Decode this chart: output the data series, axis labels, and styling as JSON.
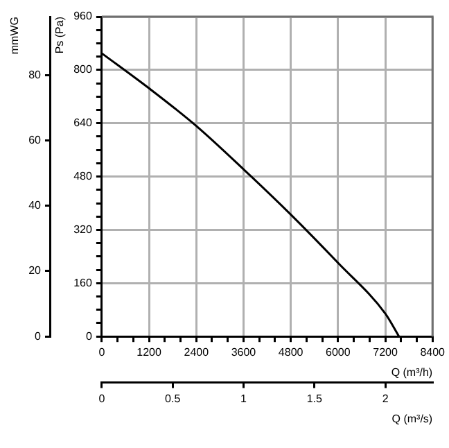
{
  "chart_data": {
    "type": "line",
    "xlabel": "Q (m³/h)",
    "ylabel": "Ps (Pa)",
    "y2label": "mmWG",
    "x2label": "Q (m³/s)",
    "x": [
      0,
      1200,
      2400,
      3600,
      4800,
      6000,
      7200,
      7550
    ],
    "series": [
      {
        "color": "#000000",
        "values": [
          850,
          745,
          632,
          502,
          366,
          221,
          69,
          0
        ]
      }
    ],
    "xlim": [
      0,
      8400
    ],
    "xticks": [
      0,
      {
        "value": 400,
        "label": null
      },
      {
        "value": 800,
        "label": null
      },
      1200,
      {
        "value": 1600,
        "label": null
      },
      {
        "value": 2000,
        "label": null
      },
      2400,
      {
        "value": 2800,
        "label": null
      },
      {
        "value": 3200,
        "label": null
      },
      3600,
      {
        "value": 4000,
        "label": null
      },
      {
        "value": 4400,
        "label": null
      },
      4800,
      {
        "value": 5200,
        "label": null
      },
      {
        "value": 5600,
        "label": null
      },
      6000,
      {
        "value": 6400,
        "label": null
      },
      {
        "value": 6800,
        "label": null
      },
      7200,
      {
        "value": 7600,
        "label": null
      },
      {
        "value": 8000,
        "label": null
      },
      8400
    ],
    "ylim": [
      0,
      960
    ],
    "yticks": [
      0,
      {
        "value": 40,
        "label": null
      },
      {
        "value": 80,
        "label": null
      },
      {
        "value": 120,
        "label": null
      },
      160,
      {
        "value": 200,
        "label": null
      },
      {
        "value": 240,
        "label": null
      },
      {
        "value": 280,
        "label": null
      },
      320,
      {
        "value": 360,
        "label": null
      },
      {
        "value": 400,
        "label": null
      },
      {
        "value": 440,
        "label": null
      },
      480,
      {
        "value": 520,
        "label": null
      },
      {
        "value": 560,
        "label": null
      },
      {
        "value": 600,
        "label": null
      },
      640,
      {
        "value": 680,
        "label": null
      },
      {
        "value": 720,
        "label": null
      },
      {
        "value": 760,
        "label": null
      },
      800,
      {
        "value": 840,
        "label": null
      },
      {
        "value": 880,
        "label": null
      },
      {
        "value": 920,
        "label": null
      },
      960
    ],
    "y2lim": [
      0,
      97.9
    ],
    "y2ticks": [
      0,
      20,
      40,
      60,
      80
    ],
    "x2lim": [
      0,
      2.333
    ],
    "x2ticks": [
      0,
      0.5,
      1,
      1.5,
      2
    ],
    "grid": true,
    "legend": false,
    "marker": "none",
    "line_style": "solid"
  }
}
